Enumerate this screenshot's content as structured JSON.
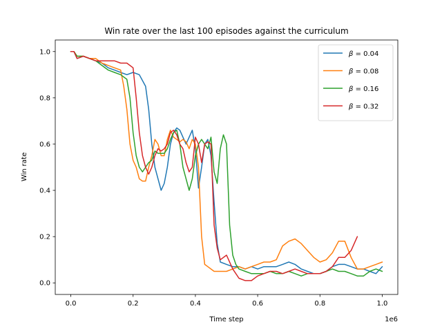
{
  "chart_data": {
    "type": "line",
    "title": "Win rate over the last 100 episodes against the curriculum",
    "xlabel": "Time step",
    "ylabel": "Win rate",
    "x_offset_text": "1e6",
    "xlim": [
      -0.05,
      1.05
    ],
    "ylim": [
      -0.05,
      1.05
    ],
    "xticks": [
      0.0,
      0.2,
      0.4,
      0.6,
      0.8,
      1.0
    ],
    "xtick_labels": [
      "0.0",
      "0.2",
      "0.4",
      "0.6",
      "0.8",
      "1.0"
    ],
    "yticks": [
      0.0,
      0.2,
      0.4,
      0.6,
      0.8,
      1.0
    ],
    "ytick_labels": [
      "0.0",
      "0.2",
      "0.4",
      "0.6",
      "0.8",
      "1.0"
    ],
    "grid": false,
    "legend_position": "top-right",
    "series": [
      {
        "name": "β = 0.04",
        "legend_prefix": "β",
        "legend_value": "0.04",
        "color": "#1f77b4",
        "x": [
          0.0,
          0.01,
          0.02,
          0.04,
          0.06,
          0.08,
          0.1,
          0.12,
          0.14,
          0.16,
          0.18,
          0.2,
          0.22,
          0.24,
          0.25,
          0.26,
          0.27,
          0.28,
          0.29,
          0.3,
          0.31,
          0.32,
          0.33,
          0.34,
          0.35,
          0.36,
          0.37,
          0.38,
          0.39,
          0.4,
          0.41,
          0.42,
          0.43,
          0.44,
          0.45,
          0.46,
          0.47,
          0.48,
          0.5,
          0.52,
          0.54,
          0.56,
          0.58,
          0.6,
          0.62,
          0.64,
          0.66,
          0.68,
          0.7,
          0.72,
          0.74,
          0.76,
          0.78,
          0.8,
          0.82,
          0.84,
          0.86,
          0.88,
          0.9,
          0.92,
          0.94,
          0.96,
          0.98,
          1.0
        ],
        "y": [
          1.0,
          1.0,
          0.97,
          0.98,
          0.97,
          0.96,
          0.95,
          0.93,
          0.92,
          0.91,
          0.9,
          0.91,
          0.9,
          0.85,
          0.75,
          0.6,
          0.5,
          0.45,
          0.4,
          0.43,
          0.5,
          0.6,
          0.65,
          0.67,
          0.66,
          0.63,
          0.6,
          0.63,
          0.66,
          0.58,
          0.41,
          0.5,
          0.6,
          0.62,
          0.55,
          0.35,
          0.17,
          0.09,
          0.08,
          0.07,
          0.07,
          0.06,
          0.07,
          0.06,
          0.07,
          0.07,
          0.07,
          0.08,
          0.09,
          0.08,
          0.06,
          0.05,
          0.04,
          0.04,
          0.05,
          0.07,
          0.08,
          0.08,
          0.07,
          0.06,
          0.06,
          0.05,
          0.04,
          0.07
        ]
      },
      {
        "name": "β = 0.08",
        "legend_prefix": "β",
        "legend_value": "0.08",
        "color": "#ff7f0e",
        "x": [
          0.0,
          0.01,
          0.02,
          0.04,
          0.06,
          0.08,
          0.1,
          0.12,
          0.14,
          0.16,
          0.17,
          0.18,
          0.19,
          0.2,
          0.21,
          0.22,
          0.23,
          0.24,
          0.25,
          0.26,
          0.27,
          0.28,
          0.29,
          0.3,
          0.31,
          0.32,
          0.33,
          0.34,
          0.35,
          0.36,
          0.37,
          0.38,
          0.39,
          0.4,
          0.41,
          0.42,
          0.43,
          0.44,
          0.45,
          0.46,
          0.48,
          0.5,
          0.52,
          0.54,
          0.56,
          0.58,
          0.6,
          0.62,
          0.64,
          0.66,
          0.68,
          0.7,
          0.72,
          0.74,
          0.76,
          0.78,
          0.8,
          0.82,
          0.84,
          0.86,
          0.88,
          0.9,
          0.92,
          0.94,
          0.96,
          0.98,
          1.0
        ],
        "y": [
          1.0,
          1.0,
          0.98,
          0.98,
          0.97,
          0.97,
          0.95,
          0.94,
          0.93,
          0.92,
          0.85,
          0.75,
          0.6,
          0.53,
          0.5,
          0.45,
          0.44,
          0.44,
          0.5,
          0.55,
          0.62,
          0.6,
          0.55,
          0.55,
          0.62,
          0.66,
          0.63,
          0.62,
          0.61,
          0.62,
          0.61,
          0.58,
          0.62,
          0.6,
          0.5,
          0.2,
          0.08,
          0.07,
          0.06,
          0.05,
          0.05,
          0.05,
          0.06,
          0.07,
          0.06,
          0.07,
          0.08,
          0.09,
          0.09,
          0.1,
          0.16,
          0.18,
          0.19,
          0.17,
          0.14,
          0.11,
          0.09,
          0.1,
          0.13,
          0.18,
          0.18,
          0.11,
          0.06,
          0.06,
          0.07,
          0.08,
          0.09
        ]
      },
      {
        "name": "β = 0.16",
        "legend_prefix": "β",
        "legend_value": "0.16",
        "color": "#2ca02c",
        "x": [
          0.0,
          0.01,
          0.02,
          0.04,
          0.06,
          0.08,
          0.1,
          0.12,
          0.14,
          0.16,
          0.18,
          0.19,
          0.2,
          0.21,
          0.22,
          0.23,
          0.24,
          0.25,
          0.26,
          0.27,
          0.28,
          0.29,
          0.3,
          0.31,
          0.32,
          0.33,
          0.34,
          0.35,
          0.36,
          0.37,
          0.38,
          0.39,
          0.4,
          0.41,
          0.42,
          0.43,
          0.44,
          0.45,
          0.46,
          0.47,
          0.48,
          0.49,
          0.5,
          0.51,
          0.52,
          0.53,
          0.54,
          0.56,
          0.58,
          0.6,
          0.62,
          0.64,
          0.66,
          0.68,
          0.7,
          0.72,
          0.74,
          0.76,
          0.78,
          0.8,
          0.82,
          0.84,
          0.86,
          0.88,
          0.9,
          0.92,
          0.94,
          0.96,
          0.98,
          1.0
        ],
        "y": [
          1.0,
          1.0,
          0.98,
          0.98,
          0.97,
          0.96,
          0.94,
          0.92,
          0.91,
          0.9,
          0.88,
          0.8,
          0.65,
          0.55,
          0.5,
          0.48,
          0.5,
          0.52,
          0.53,
          0.57,
          0.56,
          0.56,
          0.56,
          0.58,
          0.62,
          0.65,
          0.66,
          0.6,
          0.5,
          0.45,
          0.4,
          0.45,
          0.55,
          0.6,
          0.62,
          0.6,
          0.58,
          0.63,
          0.48,
          0.43,
          0.58,
          0.64,
          0.6,
          0.25,
          0.12,
          0.08,
          0.06,
          0.05,
          0.04,
          0.04,
          0.04,
          0.05,
          0.04,
          0.04,
          0.05,
          0.04,
          0.03,
          0.04,
          0.04,
          0.04,
          0.05,
          0.06,
          0.05,
          0.05,
          0.04,
          0.03,
          0.03,
          0.05,
          0.06,
          0.05
        ]
      },
      {
        "name": "β = 0.32",
        "legend_prefix": "β",
        "legend_value": "0.32",
        "color": "#d62728",
        "x": [
          0.0,
          0.01,
          0.02,
          0.04,
          0.06,
          0.08,
          0.1,
          0.12,
          0.14,
          0.16,
          0.18,
          0.2,
          0.21,
          0.22,
          0.23,
          0.24,
          0.25,
          0.26,
          0.27,
          0.28,
          0.29,
          0.3,
          0.31,
          0.32,
          0.33,
          0.34,
          0.35,
          0.36,
          0.37,
          0.38,
          0.39,
          0.4,
          0.41,
          0.42,
          0.43,
          0.44,
          0.45,
          0.46,
          0.47,
          0.48,
          0.5,
          0.52,
          0.54,
          0.56,
          0.58,
          0.6,
          0.62,
          0.64,
          0.66,
          0.68,
          0.7,
          0.72,
          0.74,
          0.76,
          0.78,
          0.8,
          0.82,
          0.84,
          0.86,
          0.88,
          0.9,
          0.92
        ],
        "y": [
          1.0,
          1.0,
          0.97,
          0.98,
          0.97,
          0.96,
          0.96,
          0.96,
          0.96,
          0.95,
          0.95,
          0.93,
          0.8,
          0.65,
          0.55,
          0.5,
          0.47,
          0.5,
          0.55,
          0.58,
          0.57,
          0.58,
          0.6,
          0.65,
          0.66,
          0.64,
          0.6,
          0.58,
          0.52,
          0.48,
          0.5,
          0.63,
          0.6,
          0.52,
          0.6,
          0.61,
          0.6,
          0.25,
          0.15,
          0.1,
          0.12,
          0.06,
          0.02,
          0.01,
          0.01,
          0.03,
          0.04,
          0.05,
          0.05,
          0.04,
          0.05,
          0.06,
          0.05,
          0.04,
          0.04,
          0.04,
          0.05,
          0.07,
          0.11,
          0.11,
          0.14,
          0.2
        ]
      }
    ]
  }
}
